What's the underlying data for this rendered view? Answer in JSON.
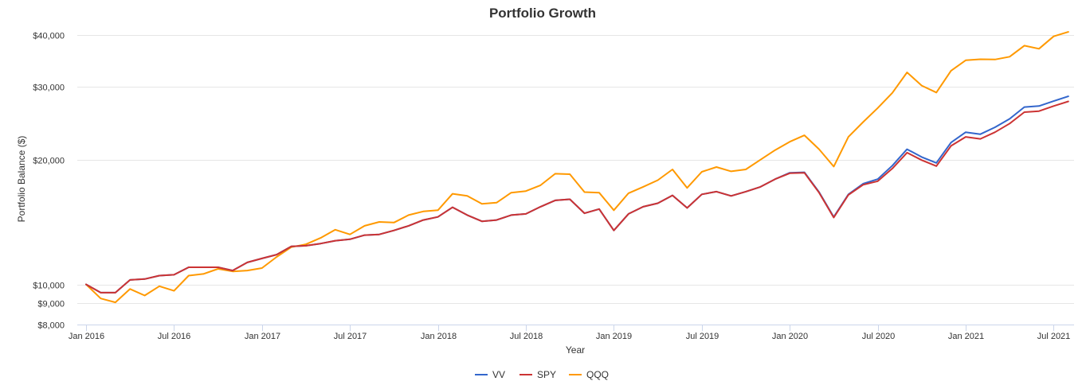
{
  "chart_data": {
    "type": "line",
    "title": "Portfolio Growth",
    "xlabel": "Year",
    "ylabel": "Portfolio Balance ($)",
    "y_scale": "log",
    "ylim": [
      8000,
      40000
    ],
    "y_ticks": [
      {
        "value": 8000,
        "label": "$8,000"
      },
      {
        "value": 9000,
        "label": "$9,000"
      },
      {
        "value": 10000,
        "label": "$10,000"
      },
      {
        "value": 20000,
        "label": "$20,000"
      },
      {
        "value": 30000,
        "label": "$30,000"
      },
      {
        "value": 40000,
        "label": "$40,000"
      }
    ],
    "x_ticks": [
      {
        "index": 0,
        "label": "Jan 2016"
      },
      {
        "index": 6,
        "label": "Jul 2016"
      },
      {
        "index": 12,
        "label": "Jan 2017"
      },
      {
        "index": 18,
        "label": "Jul 2017"
      },
      {
        "index": 24,
        "label": "Jan 2018"
      },
      {
        "index": 30,
        "label": "Jul 2018"
      },
      {
        "index": 36,
        "label": "Jan 2019"
      },
      {
        "index": 42,
        "label": "Jul 2019"
      },
      {
        "index": 48,
        "label": "Jan 2020"
      },
      {
        "index": 54,
        "label": "Jul 2020"
      },
      {
        "index": 60,
        "label": "Jan 2021"
      },
      {
        "index": 66,
        "label": "Jul 2021"
      }
    ],
    "x_start": "Jan 2016",
    "x_interval": "monthly",
    "series": [
      {
        "name": "VV",
        "color": "#3366cc",
        "values": [
          10000,
          9550,
          9550,
          10250,
          10300,
          10500,
          10550,
          11000,
          11000,
          11000,
          10800,
          11300,
          11550,
          11800,
          12350,
          12400,
          12550,
          12750,
          12850,
          13150,
          13200,
          13500,
          13850,
          14300,
          14550,
          15350,
          14700,
          14200,
          14300,
          14700,
          14800,
          15400,
          15950,
          16050,
          14850,
          15200,
          13500,
          14800,
          15400,
          15700,
          16400,
          15300,
          16500,
          16750,
          16350,
          16750,
          17200,
          17950,
          18600,
          18650,
          16700,
          14550,
          16500,
          17500,
          17950,
          19350,
          21200,
          20300,
          19650,
          22000,
          23300,
          23050,
          23950,
          25100,
          26800,
          26950,
          27700,
          28450
        ]
      },
      {
        "name": "SPY",
        "color": "#cc3333",
        "values": [
          10000,
          9550,
          9550,
          10250,
          10300,
          10500,
          10550,
          11000,
          11000,
          11000,
          10800,
          11300,
          11550,
          11800,
          12350,
          12400,
          12550,
          12750,
          12850,
          13150,
          13200,
          13500,
          13850,
          14300,
          14550,
          15350,
          14700,
          14200,
          14300,
          14700,
          14800,
          15400,
          15950,
          16050,
          14850,
          15200,
          13500,
          14800,
          15400,
          15700,
          16400,
          15300,
          16500,
          16750,
          16350,
          16750,
          17200,
          17950,
          18550,
          18600,
          16650,
          14500,
          16450,
          17400,
          17750,
          19050,
          20800,
          19950,
          19300,
          21600,
          22700,
          22450,
          23300,
          24450,
          26050,
          26200,
          26950,
          27650
        ]
      },
      {
        "name": "QQQ",
        "color": "#ff9900",
        "values": [
          10000,
          9250,
          9050,
          9750,
          9400,
          9900,
          9650,
          10500,
          10600,
          10900,
          10750,
          10800,
          10950,
          11650,
          12300,
          12500,
          12950,
          13550,
          13200,
          13850,
          14150,
          14100,
          14700,
          15000,
          15100,
          16550,
          16350,
          15650,
          15750,
          16650,
          16800,
          17350,
          18500,
          18450,
          16700,
          16650,
          15100,
          16600,
          17200,
          17850,
          18950,
          17100,
          18700,
          19200,
          18750,
          18950,
          20000,
          21100,
          22100,
          22900,
          21200,
          19250,
          22700,
          24650,
          26650,
          29000,
          32500,
          30200,
          29050,
          32800,
          34750,
          34950,
          34900,
          35450,
          37700,
          37050,
          39700,
          40700
        ]
      }
    ]
  }
}
